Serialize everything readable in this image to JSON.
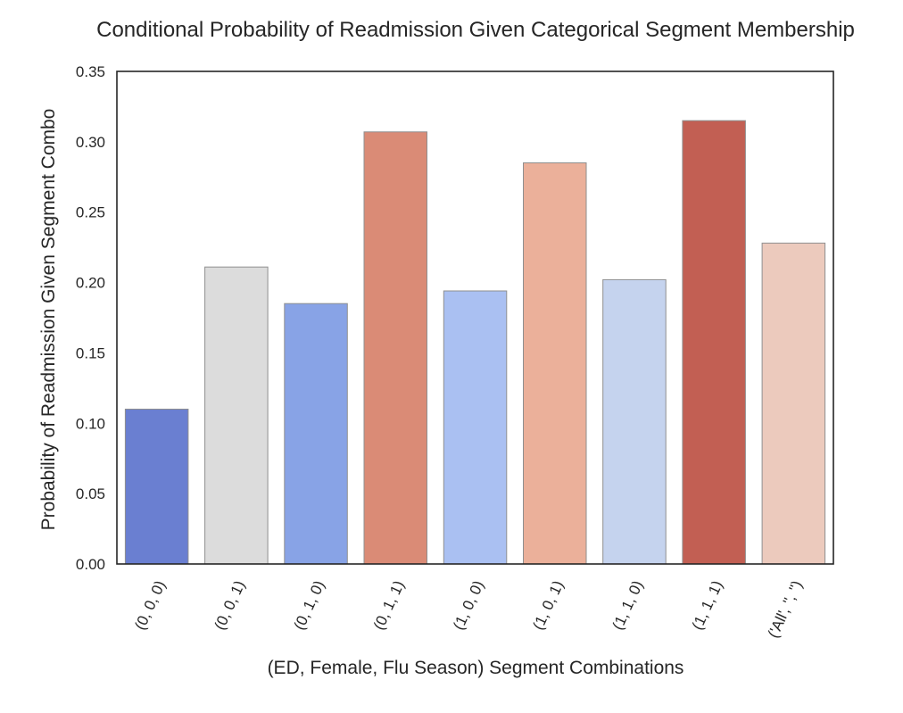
{
  "chart_data": {
    "type": "bar",
    "title": "Conditional Probability of Readmission Given Categorical Segment Membership",
    "xlabel": "(ED, Female, Flu Season) Segment Combinations",
    "ylabel": "Probability of Readmission Given Segment Combo",
    "ylim": [
      0,
      0.35
    ],
    "yticks": [
      "0.00",
      "0.05",
      "0.10",
      "0.15",
      "0.20",
      "0.25",
      "0.30",
      "0.35"
    ],
    "grid": false,
    "categories": [
      "(0, 0, 0)",
      "(0, 0, 1)",
      "(0, 1, 0)",
      "(0, 1, 1)",
      "(1, 0, 0)",
      "(1, 0, 1)",
      "(1, 1, 0)",
      "(1, 1, 1)",
      "('All', '', '')"
    ],
    "values": [
      0.11,
      0.211,
      0.185,
      0.307,
      0.194,
      0.285,
      0.202,
      0.315,
      0.228
    ],
    "colors": [
      "#6a7fd1",
      "#dcdcdc",
      "#88a3e6",
      "#da8b76",
      "#aac0f2",
      "#ebb09a",
      "#c5d3ee",
      "#c25f53",
      "#eccabd"
    ]
  }
}
